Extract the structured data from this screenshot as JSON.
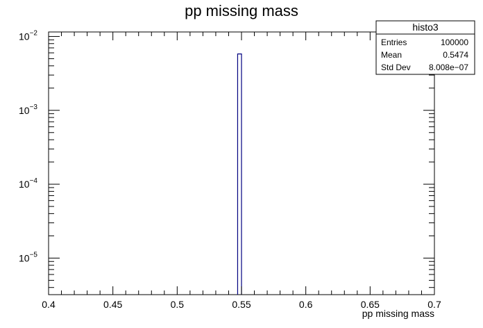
{
  "chart_data": {
    "type": "bar",
    "title": "pp missing mass",
    "xlabel": "pp missing mass",
    "ylabel": "",
    "xlim": [
      0.4,
      0.7
    ],
    "ylim": [
      3.2e-06,
      0.0115
    ],
    "yscale": "log",
    "x_ticks": [
      "0.4",
      "0.45",
      "0.5",
      "0.55",
      "0.6",
      "0.65",
      "0.7"
    ],
    "y_ticks": [
      {
        "base": "10",
        "exp": "−2",
        "value": 0.01
      },
      {
        "base": "10",
        "exp": "−3",
        "value": 0.001
      },
      {
        "base": "10",
        "exp": "−4",
        "value": 0.0001
      },
      {
        "base": "10",
        "exp": "−5",
        "value": 1e-05
      }
    ],
    "bins": [
      {
        "low": 0.547,
        "high": 0.55,
        "value": 0.0058
      }
    ],
    "bar_color": "#000080",
    "grid": false,
    "legend": "none"
  },
  "stats": {
    "name": "histo3",
    "rows": [
      {
        "label": "Entries",
        "value": "100000"
      },
      {
        "label": "Mean",
        "value": "0.5474"
      },
      {
        "label": "Std Dev",
        "value": "8.008e−07"
      }
    ]
  }
}
